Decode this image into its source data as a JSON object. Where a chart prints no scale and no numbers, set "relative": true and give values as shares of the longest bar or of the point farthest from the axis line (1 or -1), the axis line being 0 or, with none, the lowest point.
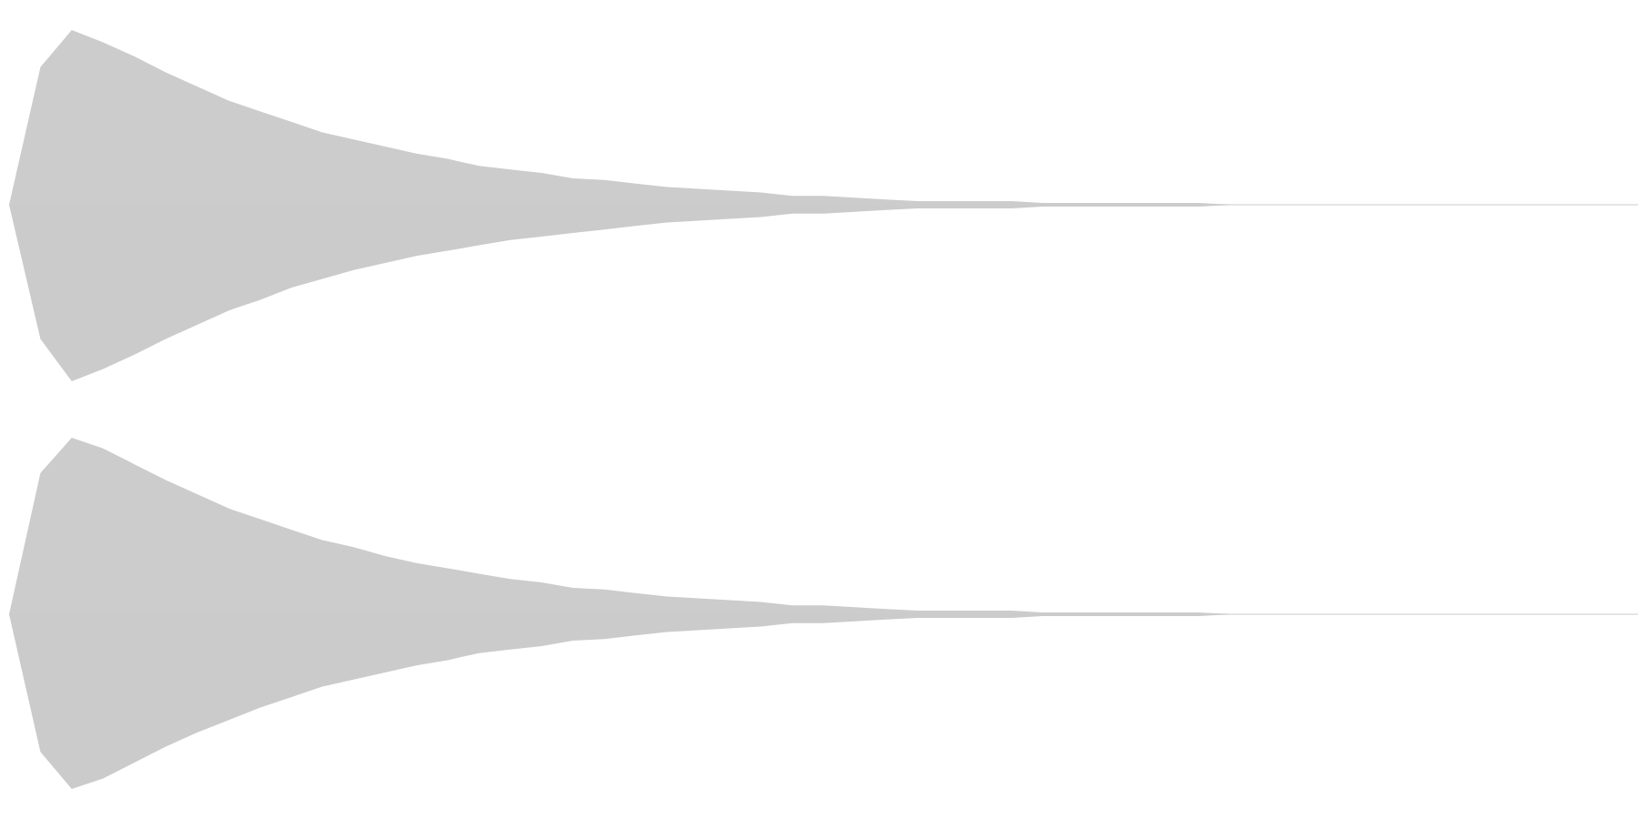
{
  "chart_data": [
    {
      "type": "area",
      "relative": true,
      "categories": [
        null,
        null,
        null,
        null,
        null,
        null,
        null,
        null,
        null,
        null,
        null,
        null,
        null,
        null,
        null,
        null,
        null,
        null,
        null,
        null,
        null,
        null,
        null,
        null,
        null,
        null,
        null,
        null,
        null,
        null,
        null,
        null,
        null,
        null,
        null,
        null,
        null,
        null,
        null,
        null,
        null,
        null,
        null,
        null,
        null,
        null,
        null,
        null,
        null,
        null,
        null,
        null,
        null
      ],
      "series": [
        {
          "color": "#cccccc",
          "values": [
            0,
            0.78,
            0.99,
            0.92,
            0.84,
            0.75,
            0.67,
            0.59,
            0.53,
            0.47,
            0.41,
            0.37,
            0.33,
            0.29,
            0.26,
            0.22,
            0.2,
            0.18,
            0.15,
            0.14,
            0.12,
            0.1,
            0.09,
            0.08,
            0.07,
            0.05,
            0.05,
            0.04,
            0.03,
            0.02,
            0.02,
            0.02,
            0.02,
            0.01,
            0.01,
            0.01,
            0.01,
            0.01,
            0.01,
            0,
            0,
            0,
            0,
            0,
            0,
            0,
            0,
            0,
            0,
            0,
            0,
            0,
            0
          ]
        },
        {
          "color": "#cbcbcb",
          "values": [
            0,
            -0.76,
            -1,
            -0.93,
            -0.85,
            -0.76,
            -0.68,
            -0.6,
            -0.54,
            -0.47,
            -0.42,
            -0.37,
            -0.33,
            -0.29,
            -0.26,
            -0.23,
            -0.2,
            -0.18,
            -0.16,
            -0.14,
            -0.12,
            -0.1,
            -0.09,
            -0.08,
            -0.07,
            -0.05,
            -0.05,
            -0.04,
            -0.03,
            -0.02,
            -0.02,
            -0.02,
            -0.02,
            -0.01,
            -0.01,
            -0.01,
            -0.01,
            -0.01,
            -0.01,
            0,
            0,
            0,
            0,
            0,
            0,
            0,
            0,
            0,
            0,
            0,
            0,
            0,
            0
          ]
        }
      ]
    },
    {
      "type": "area",
      "relative": true,
      "categories": [
        null,
        null,
        null,
        null,
        null,
        null,
        null,
        null,
        null,
        null,
        null,
        null,
        null,
        null,
        null,
        null,
        null,
        null,
        null,
        null,
        null,
        null,
        null,
        null,
        null,
        null,
        null,
        null,
        null,
        null,
        null,
        null,
        null,
        null,
        null,
        null,
        null,
        null,
        null,
        null,
        null,
        null,
        null,
        null,
        null,
        null,
        null,
        null,
        null,
        null,
        null,
        null,
        null
      ],
      "series": [
        {
          "color": "#cccccc",
          "values": [
            0,
            0.8,
            1,
            0.94,
            0.85,
            0.76,
            0.68,
            0.6,
            0.54,
            0.48,
            0.42,
            0.38,
            0.33,
            0.29,
            0.26,
            0.23,
            0.2,
            0.18,
            0.15,
            0.14,
            0.12,
            0.1,
            0.09,
            0.08,
            0.07,
            0.05,
            0.05,
            0.04,
            0.03,
            0.02,
            0.02,
            0.02,
            0.02,
            0.01,
            0.01,
            0.01,
            0.01,
            0.01,
            0.01,
            0,
            0,
            0,
            0,
            0,
            0,
            0,
            0,
            0,
            0,
            0,
            0,
            0,
            0
          ]
        },
        {
          "color": "#cbcbcb",
          "values": [
            0,
            -0.78,
            -0.99,
            -0.93,
            -0.84,
            -0.75,
            -0.67,
            -0.6,
            -0.53,
            -0.47,
            -0.41,
            -0.37,
            -0.33,
            -0.29,
            -0.26,
            -0.22,
            -0.2,
            -0.18,
            -0.15,
            -0.14,
            -0.12,
            -0.1,
            -0.09,
            -0.08,
            -0.07,
            -0.05,
            -0.05,
            -0.04,
            -0.03,
            -0.02,
            -0.02,
            -0.02,
            -0.02,
            -0.01,
            -0.01,
            -0.01,
            -0.01,
            -0.01,
            -0.01,
            0,
            0,
            0,
            0,
            0,
            0,
            0,
            0,
            0,
            0,
            0,
            0,
            0,
            0
          ]
        }
      ]
    }
  ]
}
